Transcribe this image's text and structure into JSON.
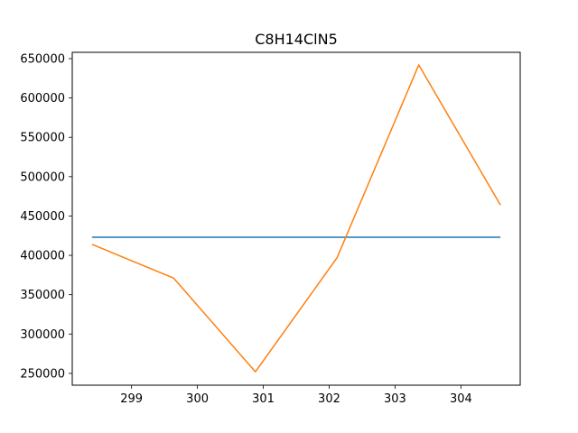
{
  "chart_data": {
    "type": "line",
    "title": "C8H14ClN5",
    "xlabel": "",
    "ylabel": "",
    "xlim": [
      298.1,
      304.9
    ],
    "ylim": [
      235000,
      658000
    ],
    "grid": false,
    "xticks": [
      299,
      300,
      301,
      302,
      303,
      304
    ],
    "yticks": [
      250000,
      300000,
      350000,
      400000,
      450000,
      500000,
      550000,
      600000,
      650000
    ],
    "series": [
      {
        "color": "#1f77b4",
        "x": [
          298.4,
          304.6
        ],
        "y": [
          423000,
          423000
        ]
      },
      {
        "color": "#ff7f0e",
        "x": [
          298.4,
          299.64,
          300.88,
          302.12,
          303.36,
          304.6
        ],
        "y": [
          414000,
          371000,
          252000,
          397000,
          642000,
          464000
        ]
      }
    ]
  }
}
